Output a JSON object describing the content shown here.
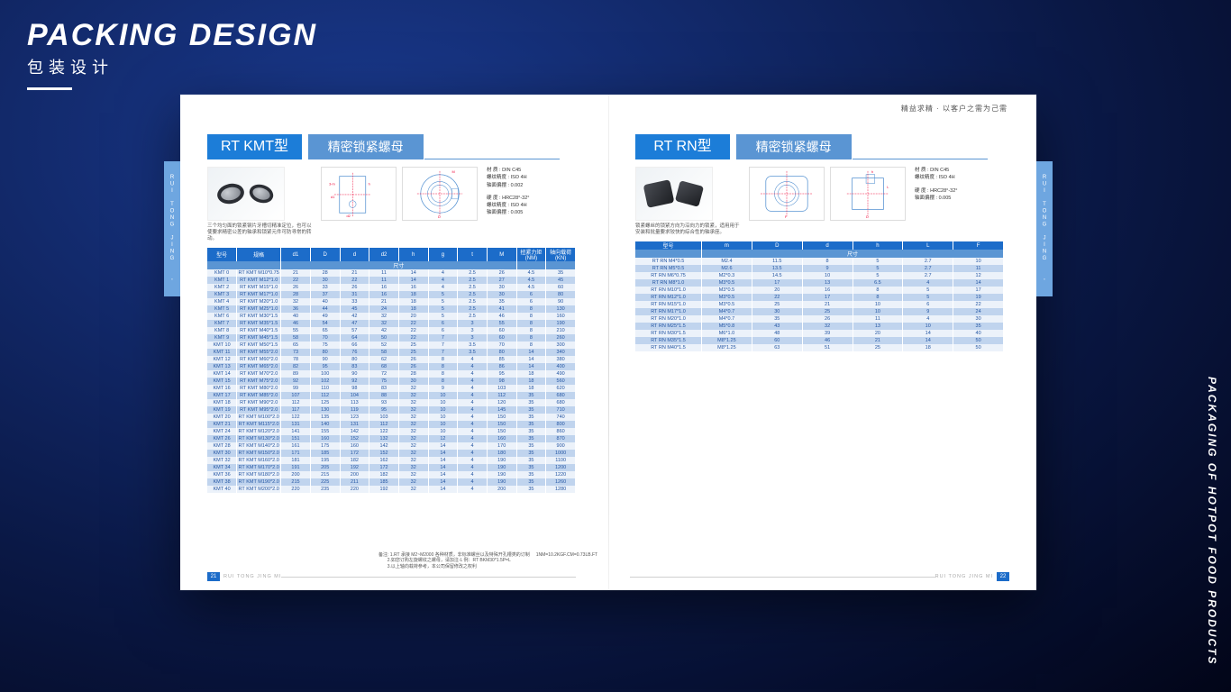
{
  "main_title": "PACKING DESIGN",
  "main_subtitle": "包装设计",
  "side_label": "PACKAGING OF HOTPOT FOOD PRODUCTS",
  "tagline": "精益求精 · 以客户之需为己需",
  "vtab_text": "RUI TONG JING MI",
  "left": {
    "title1": "RT KMT型",
    "title2": "精密锁紧螺母",
    "spec1": "材 质 : DIN C45",
    "spec2": "螺纹精度 : ISO 4H",
    "spec3": "轴面偏摆 : 0.002",
    "spec4": "硬 度 : HRC28°-32°",
    "spec5": "螺纹精度 : ISO 4H",
    "spec6": "轴面偏摆 : 0.005",
    "note": "三个均匀面的锁紧钢片牙槽切精准定位，也可以使要求精密公差的轴承和锁紧元件可防寻常的转动。",
    "note2": "备注:",
    "note2a": "1.RT 承接 M2~M2000 各种材质，非标准螺丝以及特殊开孔槽类的订制",
    "note2b": "2.如您订购左旋螺纹之螺母，请加注-L  例：RT BKM30*1.5P=L",
    "note2c": "3.以上轴向载荷参考，本公司保留修改之权利",
    "note2d": "1NM=10.2KGF.CM=0.73LB.FT",
    "page_num": "21",
    "brand": "RUI TONG JING MI",
    "columns": [
      "型号",
      "规格",
      "d1",
      "D",
      "d",
      "d2",
      "h",
      "g",
      "t",
      "M",
      "扭紧力矩(NM)",
      "轴向载荷(KN)"
    ],
    "subhead": "尺寸",
    "rows": [
      [
        "KMT 0",
        "RT KMT M10*0.75",
        "21",
        "28",
        "21",
        "11",
        "14",
        "4",
        "2.5",
        "26",
        "4.5",
        "35"
      ],
      [
        "KMT 1",
        "RT KMT M12*1.0",
        "22",
        "30",
        "22",
        "11",
        "14",
        "4",
        "2.5",
        "27",
        "4.5",
        "45"
      ],
      [
        "KMT 2",
        "RT KMT M15*1.0",
        "26",
        "33",
        "26",
        "16",
        "16",
        "4",
        "2.5",
        "30",
        "4.5",
        "60"
      ],
      [
        "KMT 3",
        "RT KMT M17*1.0",
        "28",
        "37",
        "31",
        "16",
        "18",
        "5",
        "2.5",
        "30",
        "6",
        "80"
      ],
      [
        "KMT 4",
        "RT KMT M20*1.0",
        "32",
        "40",
        "33",
        "21",
        "18",
        "5",
        "2.5",
        "35",
        "6",
        "90"
      ],
      [
        "KMT 5",
        "RT KMT M25*1.0",
        "36",
        "44",
        "45",
        "24",
        "18",
        "5",
        "2.5",
        "41",
        "8",
        "130"
      ],
      [
        "KMT 6",
        "RT KMT M30*1.5",
        "40",
        "49",
        "42",
        "32",
        "20",
        "5",
        "2.5",
        "46",
        "8",
        "160"
      ],
      [
        "KMT 7",
        "RT KMT M35*1.5",
        "46",
        "54",
        "47",
        "32",
        "22",
        "6",
        "3",
        "55",
        "8",
        "190"
      ],
      [
        "KMT 8",
        "RT KMT M40*1.5",
        "55",
        "65",
        "57",
        "42",
        "22",
        "6",
        "3",
        "60",
        "8",
        "210"
      ],
      [
        "KMT 9",
        "RT KMT M45*1.5",
        "58",
        "70",
        "64",
        "50",
        "22",
        "7",
        "3",
        "60",
        "8",
        "260"
      ],
      [
        "KMT 10",
        "RT KMT M50*1.5",
        "65",
        "75",
        "66",
        "52",
        "25",
        "7",
        "3.5",
        "70",
        "8",
        "300"
      ],
      [
        "KMT 11",
        "RT KMT M55*2.0",
        "73",
        "80",
        "76",
        "58",
        "25",
        "7",
        "3.5",
        "80",
        "14",
        "340"
      ],
      [
        "KMT 12",
        "RT KMT M60*2.0",
        "78",
        "90",
        "80",
        "62",
        "26",
        "8",
        "4",
        "85",
        "14",
        "380"
      ],
      [
        "KMT 13",
        "RT KMT M65*2.0",
        "82",
        "95",
        "83",
        "68",
        "26",
        "8",
        "4",
        "86",
        "14",
        "400"
      ],
      [
        "KMT 14",
        "RT KMT M70*2.0",
        "89",
        "100",
        "90",
        "72",
        "28",
        "8",
        "4",
        "95",
        "18",
        "490"
      ],
      [
        "KMT 15",
        "RT KMT M75*2.0",
        "92",
        "102",
        "92",
        "75",
        "30",
        "8",
        "4",
        "98",
        "18",
        "560"
      ],
      [
        "KMT 16",
        "RT KMT M80*2.0",
        "99",
        "110",
        "98",
        "83",
        "32",
        "9",
        "4",
        "103",
        "18",
        "620"
      ],
      [
        "KMT 17",
        "RT KMT M85*2.0",
        "107",
        "112",
        "104",
        "88",
        "32",
        "10",
        "4",
        "112",
        "35",
        "680"
      ],
      [
        "KMT 18",
        "RT KMT M90*2.0",
        "112",
        "125",
        "113",
        "93",
        "32",
        "10",
        "4",
        "120",
        "35",
        "680"
      ],
      [
        "KMT 19",
        "RT KMT M95*2.0",
        "117",
        "130",
        "119",
        "95",
        "32",
        "10",
        "4",
        "145",
        "35",
        "710"
      ],
      [
        "KMT 20",
        "RT KMT M100*2.0",
        "122",
        "135",
        "123",
        "103",
        "32",
        "10",
        "4",
        "150",
        "35",
        "740"
      ],
      [
        "KMT 21",
        "RT KMT M115*2.0",
        "131",
        "140",
        "131",
        "112",
        "32",
        "10",
        "4",
        "150",
        "35",
        "800"
      ],
      [
        "KMT 24",
        "RT KMT M120*2.0",
        "141",
        "155",
        "142",
        "122",
        "32",
        "10",
        "4",
        "150",
        "35",
        "860"
      ],
      [
        "KMT 26",
        "RT KMT M130*2.0",
        "151",
        "160",
        "152",
        "132",
        "32",
        "12",
        "4",
        "160",
        "35",
        "870"
      ],
      [
        "KMT 28",
        "RT KMT M140*2.0",
        "161",
        "175",
        "160",
        "142",
        "32",
        "14",
        "4",
        "170",
        "35",
        "900"
      ],
      [
        "KMT 30",
        "RT KMT M150*2.0",
        "171",
        "185",
        "172",
        "152",
        "32",
        "14",
        "4",
        "180",
        "35",
        "1000"
      ],
      [
        "KMT 32",
        "RT KMT M160*2.0",
        "181",
        "195",
        "182",
        "162",
        "32",
        "14",
        "4",
        "190",
        "35",
        "1100"
      ],
      [
        "KMT 34",
        "RT KMT M170*2.0",
        "191",
        "205",
        "192",
        "172",
        "32",
        "14",
        "4",
        "190",
        "35",
        "1200"
      ],
      [
        "KMT 36",
        "RT KMT M180*2.0",
        "200",
        "215",
        "200",
        "182",
        "32",
        "14",
        "4",
        "190",
        "35",
        "1220"
      ],
      [
        "KMT 38",
        "RT KMT M190*2.0",
        "215",
        "225",
        "211",
        "185",
        "32",
        "14",
        "4",
        "190",
        "35",
        "1260"
      ],
      [
        "KMT 40",
        "RT KMT M200*2.0",
        "220",
        "235",
        "220",
        "192",
        "32",
        "14",
        "4",
        "200",
        "35",
        "1280"
      ]
    ]
  },
  "right": {
    "title1": "RT RN型",
    "title2": "精密锁紧螺母",
    "spec1": "材 质 : DIN C45",
    "spec2": "螺纹精度 : ISO 4H",
    "spec4": "硬 度 : HRC28°-32°",
    "spec6": "轴面偏摆 : 0.005",
    "note": "锁紧螺丝的锁紧方向为沿向力的锁紧，适用用于安装和批量要求较快的综合性的轴承座。",
    "page_num": "22",
    "brand": "RUI TONG JING MI",
    "columns": [
      "型号",
      "m",
      "D",
      "d",
      "h",
      "L",
      "F"
    ],
    "subhead": "尺寸",
    "rows": [
      [
        "RT RN M4*0.5",
        "M2.4",
        "11.5",
        "8",
        "5",
        "2.7",
        "10"
      ],
      [
        "RT RN M5*0.5",
        "M2.6",
        "13.5",
        "9",
        "5",
        "2.7",
        "11"
      ],
      [
        "RT RN M6*0.75",
        "M2*0.3",
        "14.5",
        "10",
        "5",
        "2.7",
        "12"
      ],
      [
        "RT RN M8*1.0",
        "M3*0.5",
        "17",
        "13",
        "6.5",
        "4",
        "14"
      ],
      [
        "RT RN M10*1.0",
        "M3*0.5",
        "20",
        "16",
        "8",
        "5",
        "17"
      ],
      [
        "RT RN M12*1.0",
        "M3*0.5",
        "22",
        "17",
        "8",
        "5",
        "19"
      ],
      [
        "RT RN M15*1.0",
        "M3*0.5",
        "25",
        "21",
        "10",
        "6",
        "22"
      ],
      [
        "RT RN M17*1.0",
        "M4*0.7",
        "30",
        "25",
        "10",
        "9",
        "24"
      ],
      [
        "RT RN M20*1.0",
        "M4*0.7",
        "35",
        "26",
        "11",
        "4",
        "30"
      ],
      [
        "RT RN M25*1.5",
        "M5*0.8",
        "43",
        "32",
        "13",
        "10",
        "35"
      ],
      [
        "RT RN M30*1.5",
        "M6*1.0",
        "48",
        "39",
        "20",
        "14",
        "40"
      ],
      [
        "RT RN M35*1.5",
        "M8*1.25",
        "60",
        "46",
        "21",
        "14",
        "50"
      ],
      [
        "RT RN M40*1.5",
        "M8*1.25",
        "63",
        "51",
        "25",
        "18",
        "50"
      ]
    ]
  }
}
